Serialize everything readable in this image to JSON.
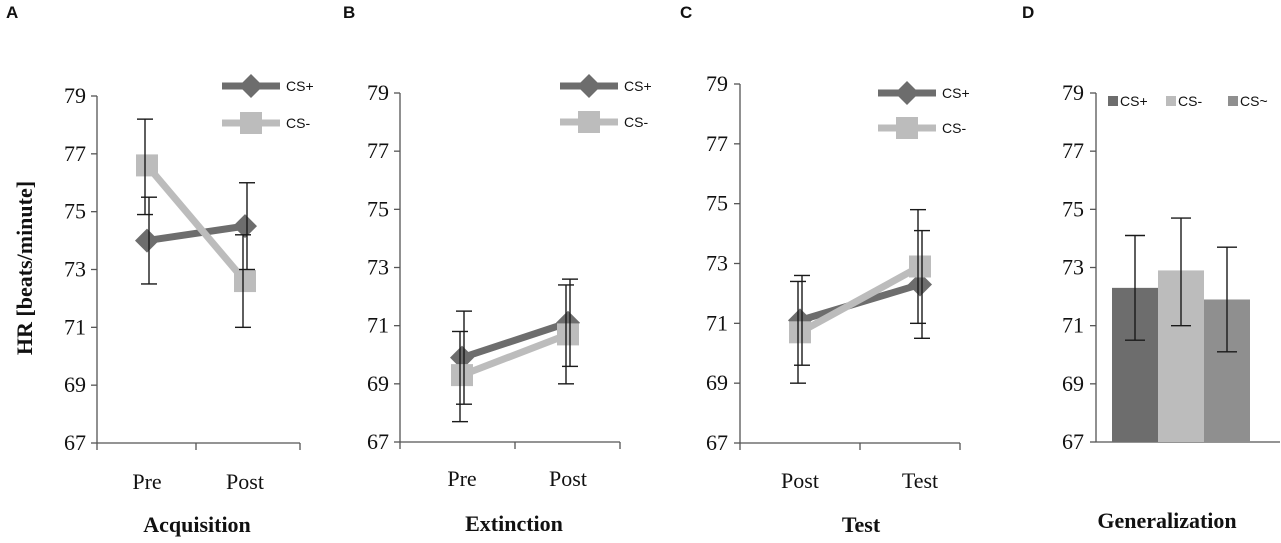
{
  "figure": {
    "ylabel": "HR [beats/minute]",
    "colors": {
      "cs_plus": "#6d6d6d",
      "cs_minus": "#bcbcbc",
      "cs_tilde": "#8f8f8f",
      "error_bar": "#1a1a1a",
      "axis": "#555555"
    }
  },
  "chart_data": [
    {
      "panel": "A",
      "type": "line",
      "xlabel": "Acquisition",
      "categories": [
        "Pre",
        "Post"
      ],
      "ylim": [
        67,
        79
      ],
      "yticks": [
        "67",
        "69",
        "71",
        "73",
        "75",
        "77",
        "79"
      ],
      "legend": [
        "CS+",
        "CS-"
      ],
      "legend_position": "top-right",
      "series": [
        {
          "name": "CS+",
          "color": "#6d6d6d",
          "marker": "diamond",
          "values": [
            74.0,
            74.5
          ],
          "err_low": [
            72.5,
            73.0
          ],
          "err_high": [
            75.5,
            76.0
          ]
        },
        {
          "name": "CS-",
          "color": "#bcbcbc",
          "marker": "square",
          "values": [
            76.6,
            72.6
          ],
          "err_low": [
            74.9,
            71.0
          ],
          "err_high": [
            78.2,
            74.2
          ]
        }
      ]
    },
    {
      "panel": "B",
      "type": "line",
      "xlabel": "Extinction",
      "categories": [
        "Pre",
        "Post"
      ],
      "ylim": [
        67,
        79
      ],
      "yticks": [
        "67",
        "69",
        "71",
        "73",
        "75",
        "77",
        "79"
      ],
      "legend": [
        "CS+",
        "CS-"
      ],
      "legend_position": "top-right",
      "series": [
        {
          "name": "CS+",
          "color": "#6d6d6d",
          "marker": "diamond",
          "values": [
            69.9,
            71.1
          ],
          "err_low": [
            68.3,
            69.6
          ],
          "err_high": [
            71.5,
            72.6
          ]
        },
        {
          "name": "CS-",
          "color": "#bcbcbc",
          "marker": "square",
          "values": [
            69.3,
            70.7
          ],
          "err_low": [
            67.7,
            69.0
          ],
          "err_high": [
            70.8,
            72.4
          ]
        }
      ]
    },
    {
      "panel": "C",
      "type": "line",
      "xlabel": "Test",
      "categories": [
        "Post",
        "Test"
      ],
      "ylim": [
        67,
        79
      ],
      "yticks": [
        "67",
        "69",
        "71",
        "73",
        "75",
        "77",
        "79"
      ],
      "legend": [
        "CS+",
        "CS-"
      ],
      "legend_position": "top-right",
      "series": [
        {
          "name": "CS+",
          "color": "#6d6d6d",
          "marker": "diamond",
          "values": [
            71.1,
            72.3
          ],
          "err_low": [
            69.6,
            70.5
          ],
          "err_high": [
            72.6,
            74.1
          ]
        },
        {
          "name": "CS-",
          "color": "#bcbcbc",
          "marker": "square",
          "values": [
            70.7,
            72.9
          ],
          "err_low": [
            69.0,
            71.0
          ],
          "err_high": [
            72.4,
            74.8
          ]
        }
      ]
    },
    {
      "panel": "D",
      "type": "bar",
      "xlabel": "Generalization",
      "categories": [
        "CS+",
        "CS-",
        "CS~"
      ],
      "ylim": [
        67,
        79
      ],
      "yticks": [
        "67",
        "69",
        "71",
        "73",
        "75",
        "77",
        "79"
      ],
      "legend": [
        "CS+",
        "CS-",
        "CS~"
      ],
      "legend_position": "top",
      "colors": [
        "#6d6d6d",
        "#bcbcbc",
        "#8f8f8f"
      ],
      "values": [
        72.3,
        72.9,
        71.9
      ],
      "err_low": [
        70.5,
        71.0,
        70.1
      ],
      "err_high": [
        74.1,
        74.7,
        73.7
      ]
    }
  ]
}
